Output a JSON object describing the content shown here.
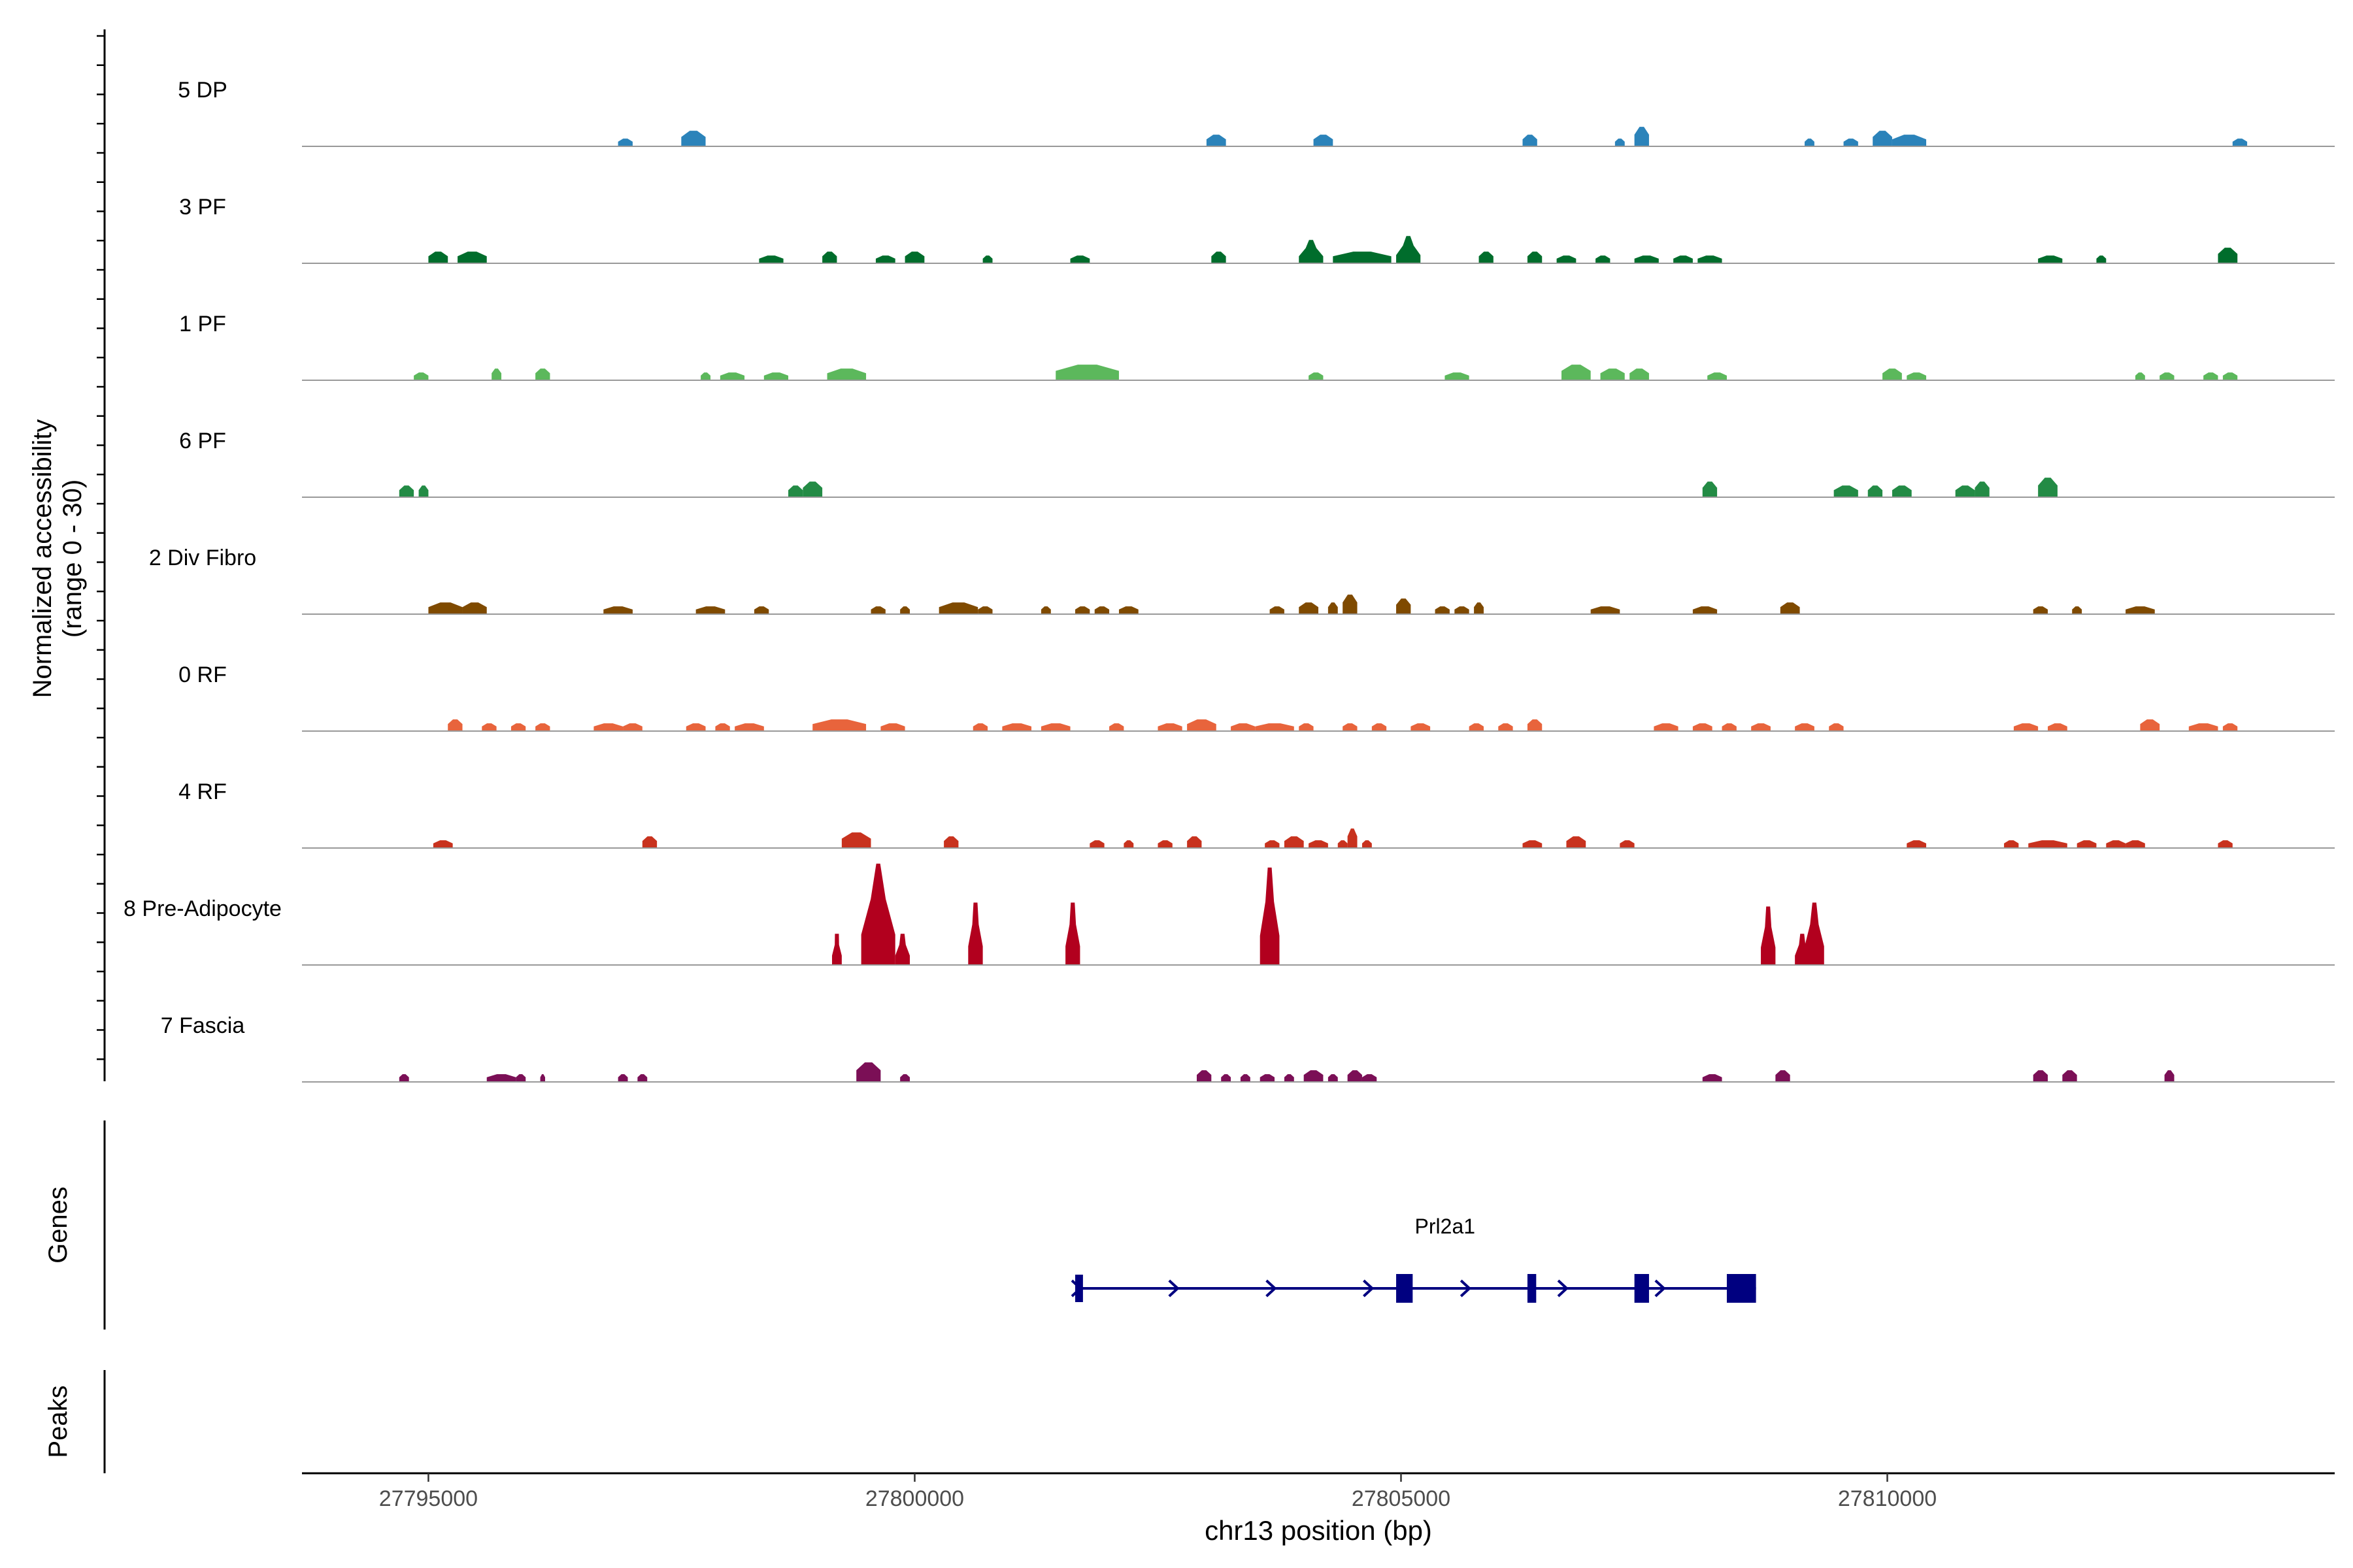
{
  "chart_data": {
    "type": "area",
    "title": "",
    "xlabel": "chr13 position (bp)",
    "ylabel": "Normalized accessibility",
    "ylabel_range": "(range 0 - 30)",
    "ylim": [
      0,
      30
    ],
    "xlim": [
      27793700,
      27814600
    ],
    "x_ticks": [
      27795000,
      27800000,
      27805000,
      27810000
    ],
    "x_tick_labels": [
      "27795000",
      "27800000",
      "27805000",
      "27810000"
    ],
    "panels": {
      "genes_label": "Genes",
      "peaks_label": "Peaks"
    },
    "series": [
      {
        "name": "5 DP",
        "color": "#2b83ba",
        "peaks": [
          [
            27796950,
            27797100,
            2
          ],
          [
            27797600,
            27797850,
            4
          ],
          [
            27803000,
            27803200,
            3
          ],
          [
            27804100,
            27804300,
            3
          ],
          [
            27806250,
            27806400,
            3
          ],
          [
            27807200,
            27807300,
            2
          ],
          [
            27807400,
            27807550,
            5
          ],
          [
            27809150,
            27809250,
            2
          ],
          [
            27809550,
            27809700,
            2
          ],
          [
            27809850,
            27810050,
            4
          ],
          [
            27810050,
            27810400,
            3
          ],
          [
            27813550,
            27813700,
            2
          ]
        ]
      },
      {
        "name": "3 PF",
        "color": "#006d2c",
        "peaks": [
          [
            27795000,
            27795200,
            3
          ],
          [
            27795300,
            27795600,
            3
          ],
          [
            27798400,
            27798650,
            2
          ],
          [
            27799050,
            27799200,
            3
          ],
          [
            27799600,
            27799800,
            2
          ],
          [
            27799900,
            27800100,
            3
          ],
          [
            27800700,
            27800800,
            2
          ],
          [
            27801600,
            27801800,
            2
          ],
          [
            27803050,
            27803200,
            3
          ],
          [
            27803950,
            27804200,
            6
          ],
          [
            27804300,
            27804900,
            3
          ],
          [
            27804950,
            27805200,
            7
          ],
          [
            27805800,
            27805950,
            3
          ],
          [
            27806300,
            27806450,
            3
          ],
          [
            27806600,
            27806800,
            2
          ],
          [
            27807000,
            27807150,
            2
          ],
          [
            27807400,
            27807650,
            2
          ],
          [
            27807800,
            27808000,
            2
          ],
          [
            27808050,
            27808300,
            2
          ],
          [
            27811550,
            27811800,
            2
          ],
          [
            27812150,
            27812250,
            2
          ],
          [
            27813400,
            27813600,
            4
          ]
        ]
      },
      {
        "name": "1 PF",
        "color": "#5cb85c",
        "peaks": [
          [
            27794850,
            27795000,
            2
          ],
          [
            27795650,
            27795750,
            3
          ],
          [
            27796100,
            27796250,
            3
          ],
          [
            27797800,
            27797900,
            2
          ],
          [
            27798000,
            27798250,
            2
          ],
          [
            27798450,
            27798700,
            2
          ],
          [
            27799100,
            27799500,
            3
          ],
          [
            27801450,
            27802100,
            4
          ],
          [
            27804050,
            27804200,
            2
          ],
          [
            27805450,
            27805700,
            2
          ],
          [
            27806650,
            27806950,
            4
          ],
          [
            27807050,
            27807300,
            3
          ],
          [
            27807350,
            27807550,
            3
          ],
          [
            27808150,
            27808350,
            2
          ],
          [
            27809950,
            27810150,
            3
          ],
          [
            27810200,
            27810400,
            2
          ],
          [
            27812550,
            27812650,
            2
          ],
          [
            27812800,
            27812950,
            2
          ],
          [
            27813250,
            27813400,
            2
          ],
          [
            27813450,
            27813600,
            2
          ]
        ]
      },
      {
        "name": "6 PF",
        "color": "#238b45",
        "peaks": [
          [
            27794700,
            27794850,
            3
          ],
          [
            27794900,
            27795000,
            3
          ],
          [
            27798700,
            27798850,
            3
          ],
          [
            27798850,
            27799050,
            4
          ],
          [
            27808100,
            27808250,
            4
          ],
          [
            27809450,
            27809700,
            3
          ],
          [
            27809800,
            27809950,
            3
          ],
          [
            27810050,
            27810250,
            3
          ],
          [
            27810700,
            27810900,
            3
          ],
          [
            27810900,
            27811050,
            4
          ],
          [
            27811550,
            27811750,
            5
          ]
        ]
      },
      {
        "name": "2 Div Fibro",
        "color": "#7f4a00",
        "peaks": [
          [
            27795000,
            27795350,
            3
          ],
          [
            27795350,
            27795600,
            3
          ],
          [
            27796800,
            27797100,
            2
          ],
          [
            27797750,
            27798050,
            2
          ],
          [
            27798350,
            27798500,
            2
          ],
          [
            27799550,
            27799700,
            2
          ],
          [
            27799850,
            27799950,
            2
          ],
          [
            27800250,
            27800650,
            3
          ],
          [
            27800650,
            27800800,
            2
          ],
          [
            27801300,
            27801400,
            2
          ],
          [
            27801650,
            27801800,
            2
          ],
          [
            27801850,
            27802000,
            2
          ],
          [
            27802100,
            27802300,
            2
          ],
          [
            27803650,
            27803800,
            2
          ],
          [
            27803950,
            27804150,
            3
          ],
          [
            27804250,
            27804350,
            3
          ],
          [
            27804400,
            27804550,
            5
          ],
          [
            27804950,
            27805100,
            4
          ],
          [
            27805350,
            27805500,
            2
          ],
          [
            27805550,
            27805700,
            2
          ],
          [
            27805750,
            27805850,
            3
          ],
          [
            27806950,
            27807250,
            2
          ],
          [
            27808000,
            27808250,
            2
          ],
          [
            27808900,
            27809100,
            3
          ],
          [
            27811500,
            27811650,
            2
          ],
          [
            27811900,
            27812000,
            2
          ],
          [
            27812450,
            27812750,
            2
          ]
        ]
      },
      {
        "name": "0 RF",
        "color": "#e8643c",
        "peaks": [
          [
            27795200,
            27795350,
            3
          ],
          [
            27795550,
            27795700,
            2
          ],
          [
            27795850,
            27796000,
            2
          ],
          [
            27796100,
            27796250,
            2
          ],
          [
            27796700,
            27797000,
            2
          ],
          [
            27797000,
            27797200,
            2
          ],
          [
            27797650,
            27797850,
            2
          ],
          [
            27797950,
            27798100,
            2
          ],
          [
            27798150,
            27798450,
            2
          ],
          [
            27798950,
            27799500,
            3
          ],
          [
            27799650,
            27799900,
            2
          ],
          [
            27800600,
            27800750,
            2
          ],
          [
            27800900,
            27801200,
            2
          ],
          [
            27801300,
            27801600,
            2
          ],
          [
            27802000,
            27802150,
            2
          ],
          [
            27802500,
            27802750,
            2
          ],
          [
            27802800,
            27803100,
            3
          ],
          [
            27803250,
            27803500,
            2
          ],
          [
            27803500,
            27803900,
            2
          ],
          [
            27803950,
            27804100,
            2
          ],
          [
            27804400,
            27804550,
            2
          ],
          [
            27804700,
            27804850,
            2
          ],
          [
            27805100,
            27805300,
            2
          ],
          [
            27805700,
            27805850,
            2
          ],
          [
            27806000,
            27806150,
            2
          ],
          [
            27806300,
            27806450,
            3
          ],
          [
            27807600,
            27807850,
            2
          ],
          [
            27808000,
            27808200,
            2
          ],
          [
            27808300,
            27808450,
            2
          ],
          [
            27808600,
            27808800,
            2
          ],
          [
            27809050,
            27809250,
            2
          ],
          [
            27809400,
            27809550,
            2
          ],
          [
            27811300,
            27811550,
            2
          ],
          [
            27811650,
            27811850,
            2
          ],
          [
            27812600,
            27812800,
            3
          ],
          [
            27813100,
            27813400,
            2
          ],
          [
            27813450,
            27813600,
            2
          ]
        ]
      },
      {
        "name": "4 RF",
        "color": "#c8321e",
        "peaks": [
          [
            27795050,
            27795250,
            2
          ],
          [
            27797200,
            27797350,
            3
          ],
          [
            27799250,
            27799550,
            4
          ],
          [
            27800300,
            27800450,
            3
          ],
          [
            27801800,
            27801950,
            2
          ],
          [
            27802150,
            27802250,
            2
          ],
          [
            27802500,
            27802650,
            2
          ],
          [
            27802800,
            27802950,
            3
          ],
          [
            27803600,
            27803750,
            2
          ],
          [
            27803800,
            27804000,
            3
          ],
          [
            27804050,
            27804250,
            2
          ],
          [
            27804350,
            27804450,
            2
          ],
          [
            27804450,
            27804550,
            5
          ],
          [
            27804600,
            27804700,
            2
          ],
          [
            27806250,
            27806450,
            2
          ],
          [
            27806700,
            27806900,
            3
          ],
          [
            27807250,
            27807400,
            2
          ],
          [
            27810200,
            27810400,
            2
          ],
          [
            27811200,
            27811350,
            2
          ],
          [
            27811450,
            27811850,
            2
          ],
          [
            27811950,
            27812150,
            2
          ],
          [
            27812250,
            27812450,
            2
          ],
          [
            27812450,
            27812650,
            2
          ],
          [
            27813400,
            27813550,
            2
          ]
        ]
      },
      {
        "name": "8 Pre-Adipocyte",
        "color": "#b2001e",
        "peaks": [
          [
            27799150,
            27799250,
            8
          ],
          [
            27799450,
            27799800,
            26
          ],
          [
            27799500,
            27799700,
            17
          ],
          [
            27799800,
            27799950,
            8
          ],
          [
            27800550,
            27800700,
            16
          ],
          [
            27801550,
            27801700,
            16
          ],
          [
            27803550,
            27803750,
            25
          ],
          [
            27808700,
            27808850,
            15
          ],
          [
            27809150,
            27809350,
            16
          ],
          [
            27809050,
            27809200,
            8
          ]
        ]
      },
      {
        "name": "7 Fascia",
        "color": "#7b0f56",
        "peaks": [
          [
            27794700,
            27794800,
            2
          ],
          [
            27795600,
            27795900,
            2
          ],
          [
            27795900,
            27796000,
            2
          ],
          [
            27796150,
            27796200,
            2
          ],
          [
            27796950,
            27797050,
            2
          ],
          [
            27797150,
            27797250,
            2
          ],
          [
            27799400,
            27799650,
            5
          ],
          [
            27799850,
            27799950,
            2
          ],
          [
            27802900,
            27803050,
            3
          ],
          [
            27803150,
            27803250,
            2
          ],
          [
            27803350,
            27803450,
            2
          ],
          [
            27803550,
            27803700,
            2
          ],
          [
            27803800,
            27803900,
            2
          ],
          [
            27804000,
            27804200,
            3
          ],
          [
            27804250,
            27804350,
            2
          ],
          [
            27804450,
            27804600,
            3
          ],
          [
            27804600,
            27804750,
            2
          ],
          [
            27808100,
            27808300,
            2
          ],
          [
            27808850,
            27809000,
            3
          ],
          [
            27811500,
            27811650,
            3
          ],
          [
            27811800,
            27811950,
            3
          ],
          [
            27812850,
            27812950,
            3
          ]
        ]
      }
    ],
    "gene": {
      "name": "Prl2a1",
      "strand": "+",
      "start": 27801650,
      "end": 27808650,
      "exons": [
        [
          27801650,
          27801730
        ],
        [
          27804950,
          27805120
        ],
        [
          27806300,
          27806390
        ],
        [
          27807400,
          27807550
        ],
        [
          27808350,
          27808650
        ]
      ],
      "utr": [
        [
          27801650,
          27801730
        ]
      ],
      "strand_markers": [
        27801650,
        27802650,
        27803650,
        27804650,
        27805650,
        27806650,
        27807650
      ]
    },
    "colors": {
      "axis": "#000000",
      "baseline": "#999999",
      "gene": "#000080"
    }
  }
}
